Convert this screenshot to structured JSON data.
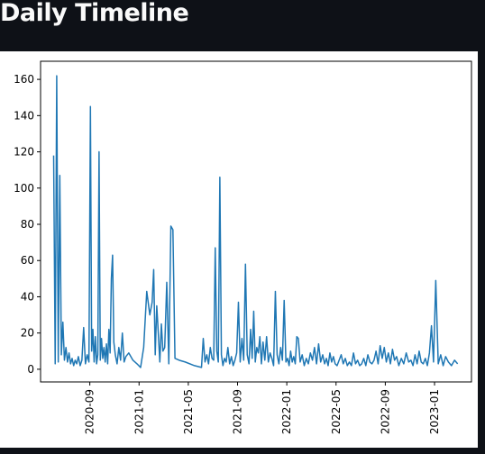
{
  "chart_data": {
    "type": "line",
    "title": "Daily Timeline",
    "x": [
      "2020-06",
      "2020-06",
      "2020-06",
      "2020-06",
      "2020-06",
      "2020-06",
      "2020-06",
      "2020-06",
      "2020-07",
      "2020-07",
      "2020-07",
      "2020-07",
      "2020-07",
      "2020-07",
      "2020-07",
      "2020-07",
      "2020-08",
      "2020-08",
      "2020-08",
      "2020-08",
      "2020-08",
      "2020-08",
      "2020-08",
      "2020-09",
      "2020-09",
      "2020-09",
      "2020-09",
      "2020-09",
      "2020-09",
      "2020-09",
      "2020-09",
      "2020-09",
      "2020-09",
      "2020-10",
      "2020-10",
      "2020-10",
      "2020-10",
      "2020-10",
      "2020-10",
      "2020-10",
      "2020-10",
      "2020-10",
      "2020-10",
      "2020-11",
      "2020-11",
      "2020-11",
      "2020-11",
      "2020-11",
      "2020-11",
      "2020-11",
      "2020-12",
      "2020-12",
      "2020-12",
      "2021-01",
      "2021-01",
      "2021-01",
      "2021-01",
      "2021-02",
      "2021-02",
      "2021-02",
      "2021-02",
      "2021-02",
      "2021-02",
      "2021-02",
      "2021-02",
      "2021-03",
      "2021-03",
      "2021-03",
      "2021-03",
      "2021-03",
      "2021-03",
      "2021-04",
      "2021-04",
      "2021-05",
      "2021-06",
      "2021-06",
      "2021-06",
      "2021-06",
      "2021-06",
      "2021-06",
      "2021-06",
      "2021-07",
      "2021-07",
      "2021-07",
      "2021-07",
      "2021-07",
      "2021-07",
      "2021-07",
      "2021-07",
      "2021-08",
      "2021-08",
      "2021-08",
      "2021-08",
      "2021-08",
      "2021-08",
      "2021-08",
      "2021-09",
      "2021-09",
      "2021-09",
      "2021-09",
      "2021-09",
      "2021-09",
      "2021-09",
      "2021-10",
      "2021-10",
      "2021-10",
      "2021-10",
      "2021-10",
      "2021-10",
      "2021-10",
      "2021-10",
      "2021-11",
      "2021-11",
      "2021-11",
      "2021-11",
      "2021-11",
      "2021-11",
      "2021-11",
      "2021-12",
      "2021-12",
      "2021-12",
      "2021-12",
      "2021-12",
      "2021-12",
      "2021-12",
      "2022-01",
      "2022-01",
      "2022-01",
      "2022-01",
      "2022-01",
      "2022-01",
      "2022-01",
      "2022-01",
      "2022-02",
      "2022-02",
      "2022-02",
      "2022-02",
      "2022-02",
      "2022-02",
      "2022-03",
      "2022-03",
      "2022-03",
      "2022-03",
      "2022-03",
      "2022-03",
      "2022-04",
      "2022-04",
      "2022-04",
      "2022-04",
      "2022-04",
      "2022-04",
      "2022-04",
      "2022-05",
      "2022-05",
      "2022-05",
      "2022-05",
      "2022-05",
      "2022-05",
      "2022-06",
      "2022-06",
      "2022-06",
      "2022-06",
      "2022-06",
      "2022-06",
      "2022-07",
      "2022-07",
      "2022-07",
      "2022-07",
      "2022-07",
      "2022-07",
      "2022-08",
      "2022-08",
      "2022-08",
      "2022-08",
      "2022-08",
      "2022-08",
      "2022-09",
      "2022-09",
      "2022-09",
      "2022-09",
      "2022-09",
      "2022-09",
      "2022-10",
      "2022-10",
      "2022-10",
      "2022-10",
      "2022-10",
      "2022-11",
      "2022-11",
      "2022-11",
      "2022-11",
      "2022-11",
      "2022-11",
      "2022-12",
      "2022-12",
      "2022-12",
      "2022-12",
      "2022-12",
      "2022-12",
      "2023-01",
      "2023-01",
      "2023-01",
      "2023-01",
      "2023-01",
      "2023-02",
      "2023-02",
      "2023-02",
      "2023-02"
    ],
    "series": [
      {
        "color": "#1f77b4",
        "values": [
          118,
          3,
          162,
          4,
          107,
          8,
          26,
          5,
          12,
          4,
          9,
          3,
          6,
          2,
          5,
          3,
          7,
          2,
          5,
          23,
          3,
          8,
          4,
          145,
          10,
          22,
          4,
          18,
          3,
          8,
          120,
          5,
          17,
          6,
          12,
          4,
          14,
          3,
          22,
          9,
          50,
          63,
          15,
          8,
          3,
          12,
          5,
          20,
          4,
          7,
          9,
          5,
          3,
          1,
          12,
          43,
          30,
          37,
          55,
          8,
          35,
          20,
          4,
          25,
          10,
          12,
          48,
          3,
          79,
          77,
          6,
          5,
          4,
          2,
          1,
          17,
          4,
          8,
          3,
          12,
          6,
          5,
          67,
          10,
          4,
          106,
          8,
          2,
          6,
          4,
          12,
          3,
          7,
          2,
          5,
          9,
          37,
          4,
          17,
          5,
          58,
          8,
          3,
          22,
          6,
          32,
          4,
          12,
          9,
          18,
          3,
          15,
          5,
          18,
          4,
          9,
          6,
          2,
          43,
          8,
          3,
          12,
          5,
          38,
          4,
          6,
          2,
          10,
          4,
          7,
          3,
          18,
          17,
          4,
          8,
          2,
          6,
          3,
          9,
          5,
          12,
          3,
          14,
          4,
          8,
          3,
          6,
          2,
          9,
          4,
          7,
          3,
          2,
          5,
          8,
          3,
          6,
          2,
          4,
          2,
          9,
          3,
          5,
          2,
          3,
          6,
          2,
          8,
          4,
          3,
          5,
          10,
          3,
          13,
          6,
          12,
          4,
          9,
          3,
          11,
          5,
          7,
          2,
          6,
          3,
          9,
          4,
          5,
          2,
          8,
          3,
          10,
          4,
          3,
          6,
          2,
          9,
          24,
          4,
          49,
          3,
          8,
          2,
          7,
          4,
          2,
          5,
          3
        ]
      }
    ],
    "xlim": [
      "2020-05",
      "2023-04"
    ],
    "xticks": [
      "2020-09",
      "2021-01",
      "2021-05",
      "2021-09",
      "2022-01",
      "2022-05",
      "2022-09",
      "2023-01"
    ],
    "ylim": [
      -7,
      170
    ],
    "yticks": [
      0,
      20,
      40,
      60,
      80,
      100,
      120,
      140,
      160
    ]
  }
}
